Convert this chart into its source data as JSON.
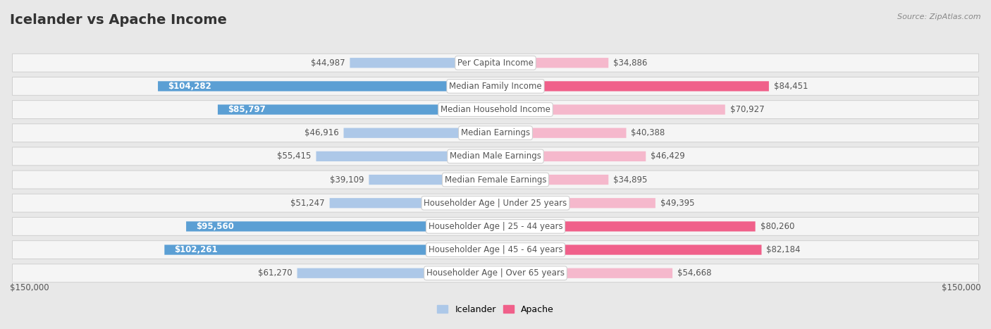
{
  "title": "Icelander vs Apache Income",
  "source": "Source: ZipAtlas.com",
  "categories": [
    "Per Capita Income",
    "Median Family Income",
    "Median Household Income",
    "Median Earnings",
    "Median Male Earnings",
    "Median Female Earnings",
    "Householder Age | Under 25 years",
    "Householder Age | 25 - 44 years",
    "Householder Age | 45 - 64 years",
    "Householder Age | Over 65 years"
  ],
  "icelander_values": [
    44987,
    104282,
    85797,
    46916,
    55415,
    39109,
    51247,
    95560,
    102261,
    61270
  ],
  "apache_values": [
    34886,
    84451,
    70927,
    40388,
    46429,
    34895,
    49395,
    80260,
    82184,
    54668
  ],
  "icelander_color_normal": "#adc8e8",
  "icelander_color_highlight": "#5b9fd4",
  "apache_color_normal": "#f5b8cc",
  "apache_color_highlight": "#f0608a",
  "background_color": "#e8e8e8",
  "row_bg_color": "#f5f5f5",
  "row_border_color": "#d0d0d0",
  "max_value": 150000,
  "value_fontsize": 8.5,
  "cat_fontsize": 8.5,
  "title_fontsize": 14,
  "source_fontsize": 8,
  "highlight_threshold": 80000,
  "legend_icelander": "Icelander",
  "legend_apache": "Apache",
  "text_color_dark": "#555555",
  "text_color_white": "#ffffff",
  "title_color": "#333333"
}
